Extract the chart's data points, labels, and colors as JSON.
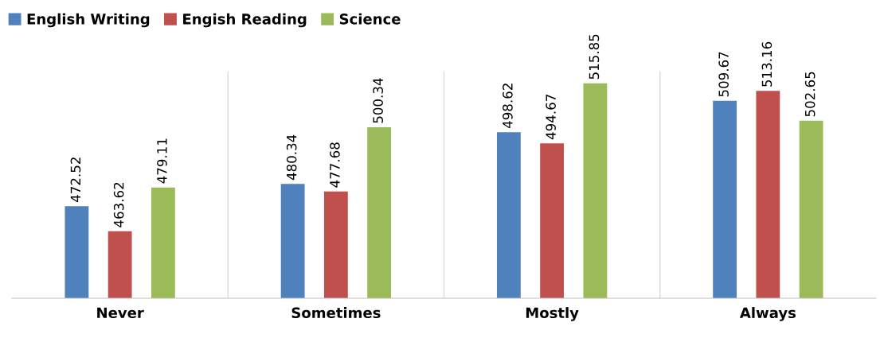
{
  "chart_data": {
    "type": "bar",
    "categories": [
      "Never",
      "Sometimes",
      "Mostly",
      "Always"
    ],
    "series": [
      {
        "name": "English Writing",
        "color": "#4f81bd",
        "values": [
          472.52,
          480.34,
          498.62,
          509.67
        ]
      },
      {
        "name": "Engish Reading",
        "color": "#c0504d",
        "values": [
          463.62,
          477.68,
          494.67,
          513.16
        ]
      },
      {
        "name": "Science",
        "color": "#9bbb59",
        "values": [
          479.11,
          500.34,
          515.85,
          502.65
        ]
      }
    ],
    "ylim": [
      440,
      520
    ],
    "tick_labels": "x",
    "data_labels": true,
    "legend": "top left",
    "grid": false
  }
}
